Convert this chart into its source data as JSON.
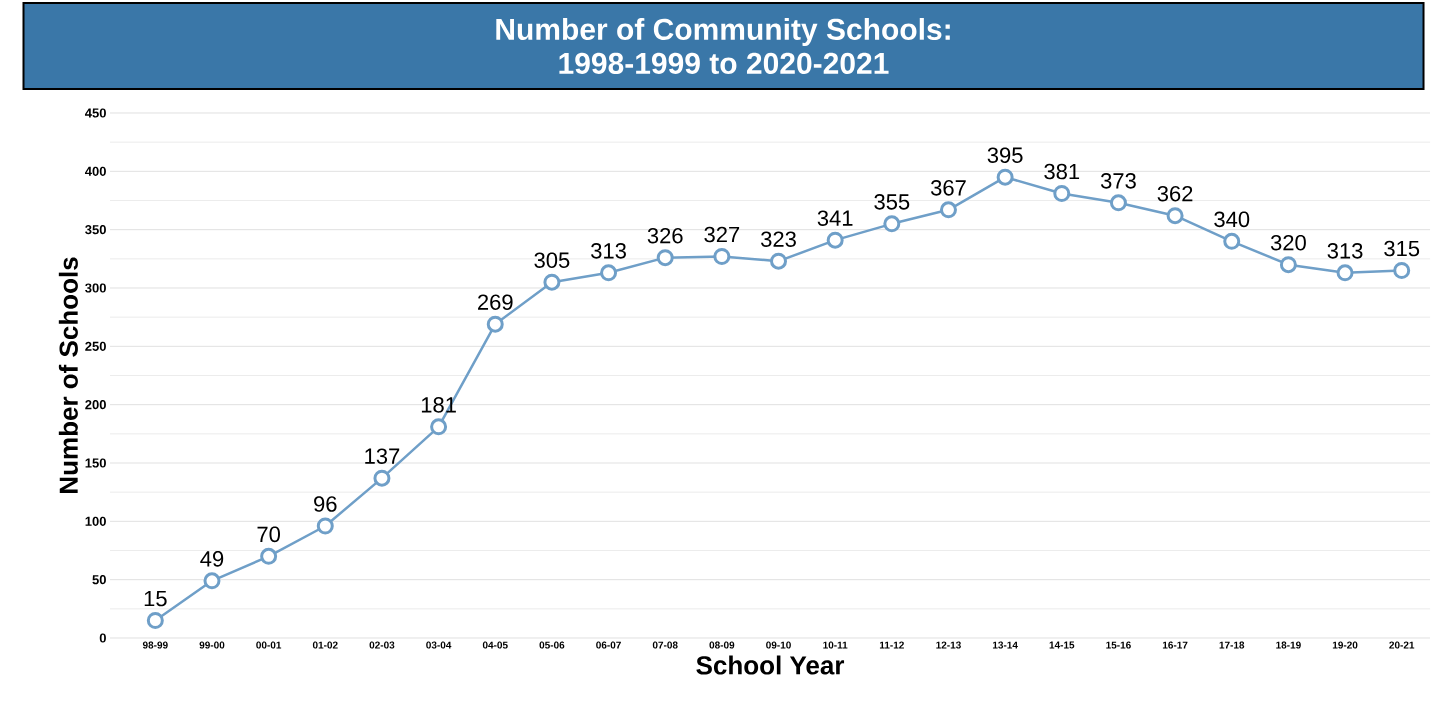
{
  "chart_data": {
    "type": "line",
    "title": "Number of Community Schools:\n1998-1999 to 2020-2021",
    "xlabel": "School Year",
    "ylabel": "Number of Schools",
    "categories": [
      "98-99",
      "99-00",
      "00-01",
      "01-02",
      "02-03",
      "03-04",
      "04-05",
      "05-06",
      "06-07",
      "07-08",
      "08-09",
      "09-10",
      "10-11",
      "11-12",
      "12-13",
      "13-14",
      "14-15",
      "15-16",
      "16-17",
      "17-18",
      "18-19",
      "19-20",
      "20-21"
    ],
    "values": [
      15,
      49,
      70,
      96,
      137,
      181,
      269,
      305,
      313,
      326,
      327,
      323,
      341,
      355,
      367,
      395,
      381,
      373,
      362,
      340,
      320,
      313,
      315
    ],
    "color": "#6f9fc8",
    "marker": "circle",
    "line_style": "solid",
    "data_labels": true,
    "grid": "y",
    "ylim": [
      0,
      450
    ],
    "yticks": [
      0,
      50,
      100,
      150,
      200,
      250,
      300,
      350,
      400,
      450
    ]
  }
}
